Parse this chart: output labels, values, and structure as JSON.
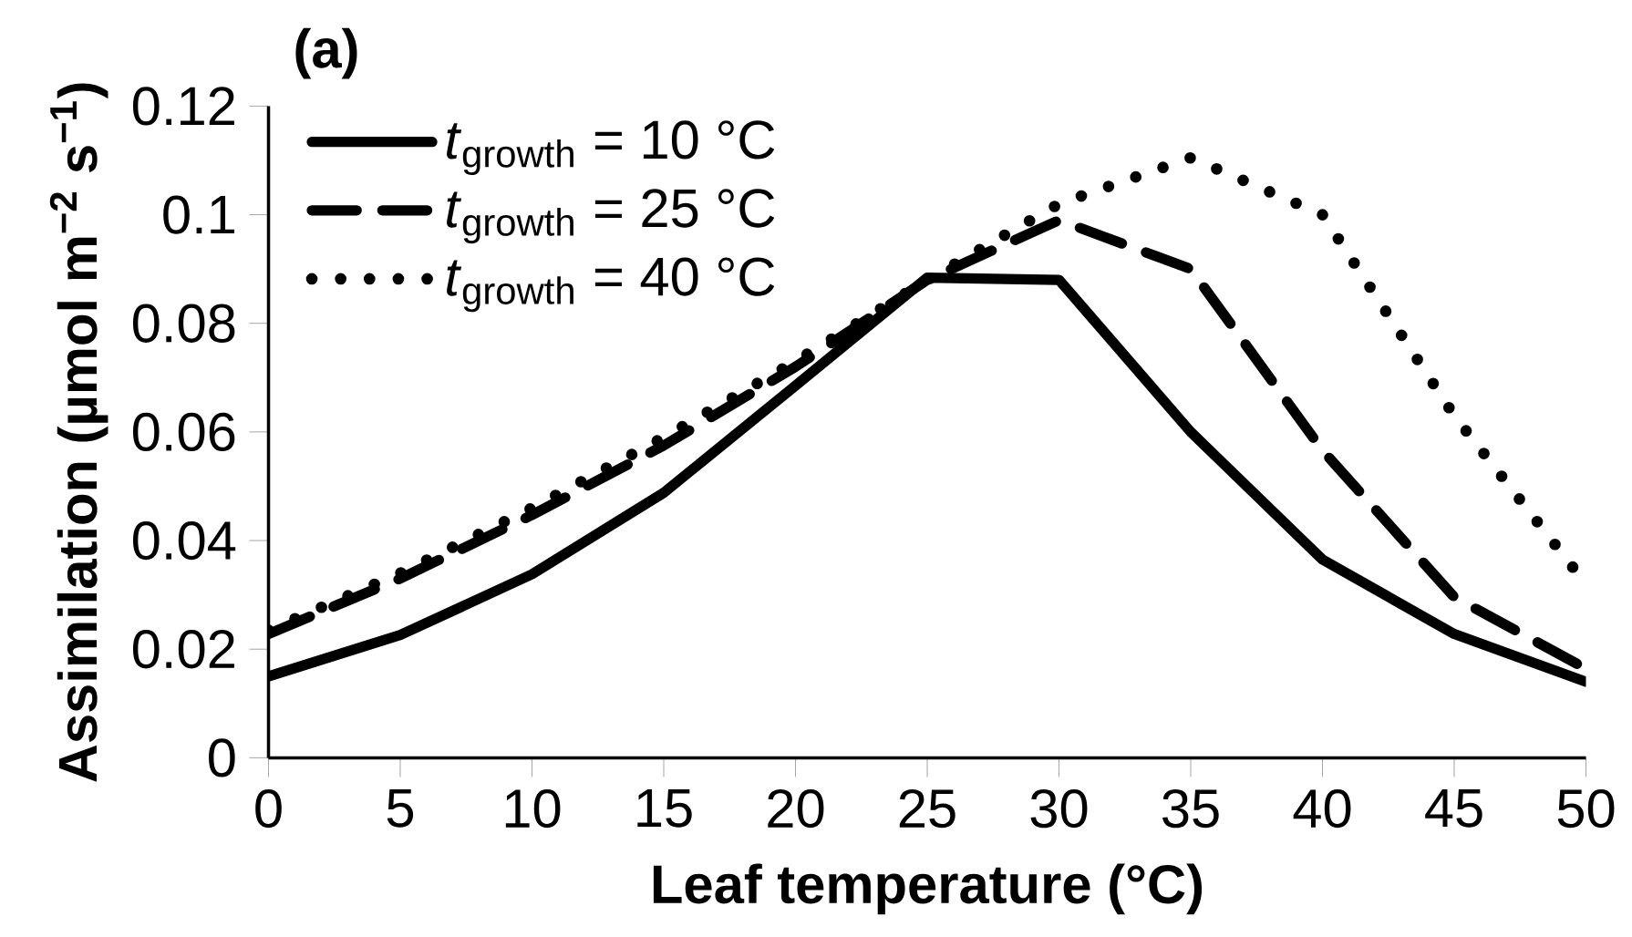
{
  "chart_data": {
    "type": "line",
    "title": "(a)",
    "xlabel": "Leaf temperature (°C)",
    "ylabel": "Assimilation (µmol m$^{−2}$ s$^{−1}$)",
    "x": [
      0,
      5,
      10,
      15,
      20,
      25,
      30,
      35,
      40,
      45,
      50
    ],
    "series": [
      {
        "name": "*t*$_{growth}$ = 10 °C",
        "color": "#000000",
        "line_style": "solid",
        "values": [
          0.015,
          0.0226,
          0.0338,
          0.0488,
          0.0685,
          0.0884,
          0.088,
          0.06,
          0.0365,
          0.0228,
          0.014
        ]
      },
      {
        "name": "*t*$_{growth}$ = 25 °C",
        "color": "#000000",
        "line_style": "dashed",
        "values": [
          0.0228,
          0.033,
          0.0447,
          0.0575,
          0.072,
          0.088,
          0.099,
          0.09,
          0.0566,
          0.0296,
          0.0164
        ]
      },
      {
        "name": "*t*$_{growth}$ = 40 °C",
        "color": "#000000",
        "line_style": "dotted",
        "values": [
          0.0235,
          0.034,
          0.046,
          0.059,
          0.073,
          0.088,
          0.102,
          0.1105,
          0.1,
          0.063,
          0.032
        ]
      }
    ],
    "xlim": [
      0,
      50
    ],
    "xticks": [
      0,
      5,
      10,
      15,
      20,
      25,
      30,
      35,
      40,
      45,
      50
    ],
    "ylim": [
      0,
      0.12
    ],
    "yticks": [
      0,
      0.02,
      0.04,
      0.06,
      0.08,
      0.1,
      0.12
    ],
    "grid": false,
    "legend": "top left"
  }
}
